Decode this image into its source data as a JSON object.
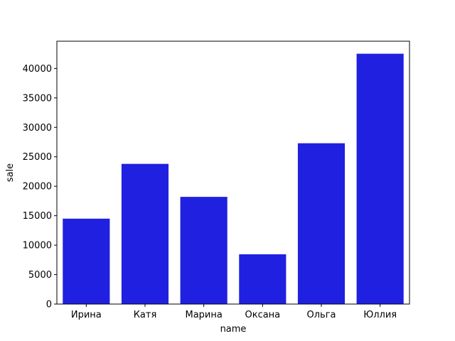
{
  "chart_data": {
    "type": "bar",
    "categories": [
      "Ирина",
      "Катя",
      "Марина",
      "Оксана",
      "Ольга",
      "Юллия"
    ],
    "values": [
      14500,
      23800,
      18200,
      8450,
      27300,
      42500
    ],
    "title": "",
    "xlabel": "name",
    "ylabel": "sale",
    "ylim": [
      0,
      44625
    ],
    "yticks": [
      0,
      5000,
      10000,
      15000,
      20000,
      25000,
      30000,
      35000,
      40000
    ],
    "ytick_labels": [
      "0",
      "5000",
      "10000",
      "15000",
      "20000",
      "25000",
      "30000",
      "35000",
      "40000"
    ],
    "grid": false,
    "legend": "none",
    "bar_color": "#2020e0"
  }
}
